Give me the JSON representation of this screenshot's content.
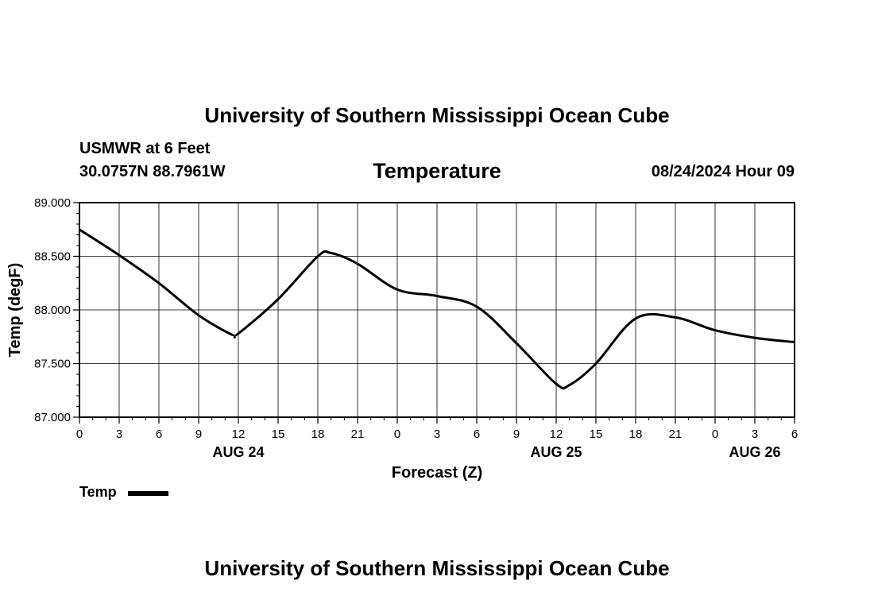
{
  "header": {
    "title": "University of Southern Mississippi Ocean Cube",
    "station": "USMWR at 6 Feet",
    "coords": "30.0757N  88.7961W",
    "datetime": "08/24/2024 Hour 09"
  },
  "footer": {
    "title": "University of Southern Mississippi Ocean Cube"
  },
  "chart_data": {
    "type": "line",
    "title": "Temperature",
    "xlabel": "Forecast (Z)",
    "ylabel": "Temp (degF)",
    "ylim": [
      87.0,
      89.0
    ],
    "xlim": [
      0,
      54
    ],
    "y_ticks": [
      "87.000",
      "87.500",
      "88.000",
      "88.500",
      "89.000"
    ],
    "x_tick_labels": [
      "0",
      "3",
      "6",
      "9",
      "12",
      "15",
      "18",
      "21",
      "0",
      "3",
      "6",
      "9",
      "12",
      "15",
      "18",
      "21",
      "0",
      "3",
      "6"
    ],
    "day_labels": [
      "AUG 24",
      "AUG 25",
      "AUG 26"
    ],
    "grid": true,
    "legend_position": "bottom-left",
    "line_color": "#000000",
    "series": [
      {
        "name": "Temp",
        "x": [
          0,
          3,
          6,
          9,
          11.5,
          12,
          15,
          18,
          19,
          21,
          24,
          27,
          30,
          33,
          36,
          37,
          39,
          42,
          45,
          48,
          51,
          54
        ],
        "values": [
          88.75,
          88.51,
          88.25,
          87.95,
          87.77,
          87.78,
          88.1,
          88.5,
          88.53,
          88.43,
          88.19,
          88.13,
          88.03,
          87.69,
          87.31,
          87.3,
          87.5,
          87.92,
          87.93,
          87.81,
          87.74,
          87.7
        ]
      }
    ]
  }
}
